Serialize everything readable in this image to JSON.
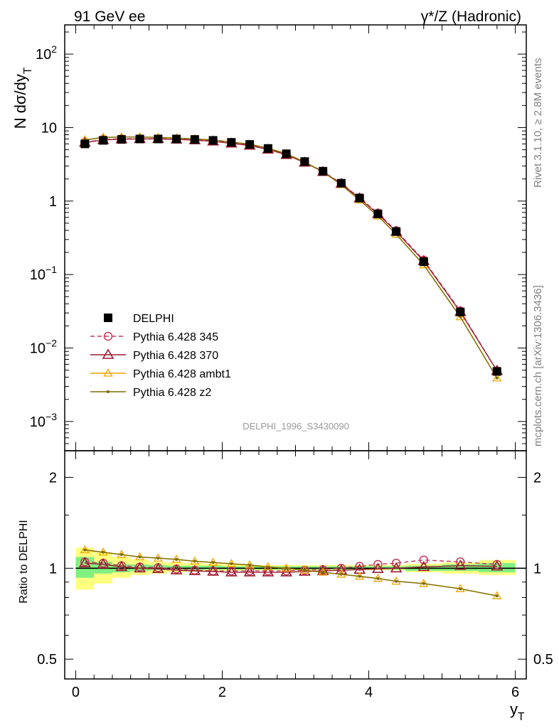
{
  "header": {
    "left": "91 GeV ee",
    "right": "γ*/Z (Hadronic)"
  },
  "side_labels": {
    "rivet": "Rivet 3.1.10, ≥ 2.8M events",
    "mcplots": "mcplots.cern.ch [arXiv:1306.3436]"
  },
  "watermark": "DELPHI_1996_S3430090",
  "colors": {
    "data": "#000000",
    "p345": "#c33b5e",
    "p370": "#9b1b30",
    "ambt1": "#f0a400",
    "z2": "#7d6b00",
    "band_inner": "#80f080",
    "band_outer": "#ffff80"
  },
  "chart_data": [
    {
      "type": "scatter",
      "panel": "main",
      "ylabel": "N dσ/dy_T",
      "xlabel": "",
      "yscale": "log",
      "ylim": [
        0.0004,
        250
      ],
      "xlim": [
        -0.15,
        6.15
      ],
      "y_tick_labels": [
        "10^-3",
        "10^-2",
        "10^-1",
        "1",
        "10",
        "10^2"
      ],
      "x": [
        0.125,
        0.375,
        0.625,
        0.875,
        1.125,
        1.375,
        1.625,
        1.875,
        2.125,
        2.375,
        2.625,
        2.875,
        3.125,
        3.375,
        3.625,
        3.875,
        4.125,
        4.375,
        4.75,
        5.25,
        5.75
      ],
      "series": [
        {
          "name": "DELPHI",
          "marker": "filled-square",
          "values": [
            6.0,
            6.7,
            6.9,
            7.0,
            7.0,
            7.0,
            6.9,
            6.7,
            6.3,
            5.9,
            5.2,
            4.4,
            3.45,
            2.55,
            1.75,
            1.1,
            0.67,
            0.385,
            0.15,
            0.031,
            0.0048
          ]
        },
        {
          "name": "Pythia 6.428 345",
          "marker": "open-circle",
          "line": "dashed",
          "values": [
            6.3,
            6.9,
            7.05,
            7.05,
            7.05,
            6.95,
            6.8,
            6.6,
            6.2,
            5.8,
            5.1,
            4.3,
            3.4,
            2.53,
            1.74,
            1.11,
            0.685,
            0.395,
            0.157,
            0.032,
            0.0049
          ]
        },
        {
          "name": "Pythia 6.428 370",
          "marker": "open-triangle",
          "values": [
            6.25,
            6.8,
            6.95,
            7.0,
            7.0,
            6.9,
            6.75,
            6.5,
            6.1,
            5.7,
            5.05,
            4.25,
            3.35,
            2.5,
            1.72,
            1.09,
            0.665,
            0.383,
            0.153,
            0.031,
            0.0049
          ]
        },
        {
          "name": "Pythia 6.428 ambt1",
          "marker": "open-triangle-small",
          "values": [
            6.8,
            7.35,
            7.45,
            7.45,
            7.35,
            7.2,
            7.0,
            6.8,
            6.35,
            5.95,
            5.25,
            4.4,
            3.4,
            2.5,
            1.67,
            1.03,
            0.625,
            0.352,
            0.135,
            0.0265,
            0.0039
          ]
        },
        {
          "name": "Pythia 6.428 z2",
          "marker": "dot",
          "values": [
            6.8,
            7.35,
            7.45,
            7.45,
            7.35,
            7.2,
            7.0,
            6.8,
            6.35,
            5.95,
            5.25,
            4.4,
            3.4,
            2.5,
            1.67,
            1.03,
            0.625,
            0.352,
            0.135,
            0.0265,
            0.0039
          ]
        }
      ]
    },
    {
      "type": "line",
      "panel": "ratio",
      "ylabel": "Ratio to DELPHI",
      "xlabel": "y_T",
      "ylim": [
        0.43,
        2.45
      ],
      "xlim": [
        -0.15,
        6.15
      ],
      "x_tick_labels": [
        "0",
        "2",
        "4",
        "6"
      ],
      "y_tick_labels": [
        "0.5",
        "1",
        "2"
      ],
      "bins": [
        0,
        0.25,
        0.5,
        0.75,
        1.0,
        1.25,
        1.5,
        1.75,
        2.0,
        2.25,
        2.5,
        2.75,
        3.0,
        3.25,
        3.5,
        3.75,
        4.0,
        4.25,
        4.5,
        5.0,
        5.5,
        6.0
      ],
      "band_inner": [
        [
          0.93,
          1.09
        ],
        [
          0.96,
          1.05
        ],
        [
          0.97,
          1.03
        ],
        [
          0.98,
          1.03
        ],
        [
          0.985,
          1.025
        ],
        [
          0.985,
          1.02
        ],
        [
          0.985,
          1.02
        ],
        [
          0.99,
          1.02
        ],
        [
          0.99,
          1.015
        ],
        [
          0.99,
          1.015
        ],
        [
          0.99,
          1.015
        ],
        [
          0.99,
          1.015
        ],
        [
          0.99,
          1.015
        ],
        [
          0.99,
          1.015
        ],
        [
          0.99,
          1.015
        ],
        [
          0.99,
          1.015
        ],
        [
          0.99,
          1.015
        ],
        [
          0.99,
          1.015
        ],
        [
          0.98,
          1.02
        ],
        [
          0.98,
          1.03
        ],
        [
          0.97,
          1.04
        ]
      ],
      "band_outer": [
        [
          0.85,
          1.17
        ],
        [
          0.89,
          1.13
        ],
        [
          0.93,
          1.09
        ],
        [
          0.95,
          1.07
        ],
        [
          0.96,
          1.05
        ],
        [
          0.97,
          1.045
        ],
        [
          0.975,
          1.04
        ],
        [
          0.98,
          1.035
        ],
        [
          0.98,
          1.03
        ],
        [
          0.985,
          1.025
        ],
        [
          0.985,
          1.025
        ],
        [
          0.985,
          1.025
        ],
        [
          0.985,
          1.025
        ],
        [
          0.985,
          1.025
        ],
        [
          0.985,
          1.025
        ],
        [
          0.985,
          1.025
        ],
        [
          0.985,
          1.025
        ],
        [
          0.985,
          1.025
        ],
        [
          0.97,
          1.035
        ],
        [
          0.96,
          1.045
        ],
        [
          0.95,
          1.065
        ]
      ],
      "x": [
        0.125,
        0.375,
        0.625,
        0.875,
        1.125,
        1.375,
        1.625,
        1.875,
        2.125,
        2.375,
        2.625,
        2.875,
        3.125,
        3.375,
        3.625,
        3.875,
        4.125,
        4.375,
        4.75,
        5.25,
        5.75
      ],
      "series": [
        {
          "name": "Pythia 6.428 345",
          "marker": "open-circle",
          "line": "dashed",
          "values": [
            1.05,
            1.04,
            1.02,
            1.01,
            1.005,
            0.995,
            0.985,
            0.98,
            0.98,
            0.98,
            0.98,
            0.98,
            0.985,
            0.99,
            1.0,
            1.015,
            1.03,
            1.04,
            1.065,
            1.05,
            1.03
          ]
        },
        {
          "name": "Pythia 6.428 370",
          "marker": "open-triangle",
          "values": [
            1.04,
            1.03,
            1.01,
            1.0,
            0.995,
            0.985,
            0.98,
            0.975,
            0.97,
            0.97,
            0.97,
            0.97,
            0.975,
            0.98,
            0.985,
            0.99,
            0.995,
            1.0,
            1.01,
            1.02,
            1.015
          ]
        },
        {
          "name": "Pythia 6.428 ambt1",
          "marker": "open-triangle-small",
          "values": [
            1.15,
            1.13,
            1.11,
            1.09,
            1.08,
            1.07,
            1.055,
            1.045,
            1.035,
            1.025,
            1.01,
            1.0,
            0.985,
            0.97,
            0.955,
            0.94,
            0.925,
            0.905,
            0.89,
            0.855,
            0.81
          ]
        },
        {
          "name": "Pythia 6.428 z2",
          "marker": "dot",
          "values": [
            1.15,
            1.13,
            1.11,
            1.09,
            1.08,
            1.07,
            1.055,
            1.045,
            1.035,
            1.025,
            1.01,
            1.0,
            0.985,
            0.97,
            0.955,
            0.94,
            0.925,
            0.905,
            0.89,
            0.855,
            0.81
          ]
        }
      ]
    }
  ]
}
